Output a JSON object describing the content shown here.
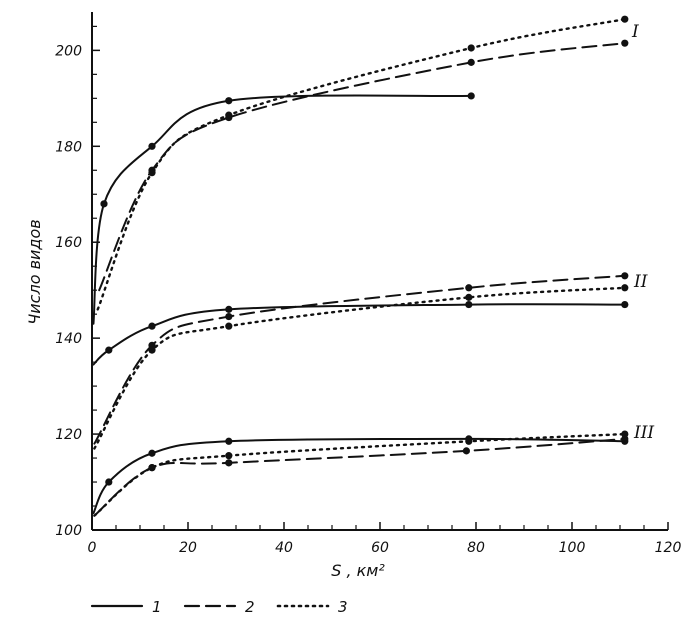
{
  "chart_data": {
    "type": "line",
    "xlabel": "S , км²",
    "ylabel": "Число видов",
    "xlim": [
      0,
      120
    ],
    "ylim": [
      100,
      208
    ],
    "x_ticks": [
      0,
      20,
      40,
      60,
      80,
      100,
      120
    ],
    "x_tick_labels": [
      "0",
      "20",
      "40",
      "60",
      "80",
      "100",
      "120"
    ],
    "y_ticks": [
      100,
      120,
      140,
      160,
      180,
      200
    ],
    "y_tick_labels": [
      "100",
      "120",
      "140",
      "160",
      "180",
      "200"
    ],
    "grid": false,
    "legend_placement": "bottom-left",
    "legend": [
      {
        "label": "1",
        "style": "solid"
      },
      {
        "label": "2",
        "style": "dashed"
      },
      {
        "label": "3",
        "style": "dotted"
      }
    ],
    "groups": [
      {
        "label": "I",
        "series": [
          {
            "legend": "1",
            "style": "solid",
            "x": [
              0.3,
              2.5,
              12.5,
              28.5,
              79
            ],
            "y": [
              143,
              168,
              180,
              189.5,
              190.5
            ]
          },
          {
            "legend": "2",
            "style": "dashed",
            "x": [
              1.5,
              12.5,
              28.5,
              79,
              111
            ],
            "y": [
              150,
              175,
              186,
              197.5,
              201.5
            ]
          },
          {
            "legend": "3",
            "style": "dotted",
            "x": [
              1.2,
              12.5,
              28.5,
              79,
              111
            ],
            "y": [
              146,
              174.5,
              186.5,
              200.5,
              206.5
            ]
          }
        ]
      },
      {
        "label": "II",
        "series": [
          {
            "legend": "1",
            "style": "solid",
            "x": [
              0.3,
              3.5,
              12.5,
              28.5,
              78.5,
              111
            ],
            "y": [
              134.5,
              137.5,
              142.5,
              146,
              147,
              147
            ]
          },
          {
            "legend": "2",
            "style": "dashed",
            "x": [
              0.5,
              12.5,
              28.5,
              78.5,
              111
            ],
            "y": [
              118,
              138.5,
              144.5,
              150.5,
              153
            ]
          },
          {
            "legend": "3",
            "style": "dotted",
            "x": [
              0.5,
              12.5,
              28.5,
              78.5,
              111
            ],
            "y": [
              117,
              137.5,
              142.5,
              148.5,
              150.5
            ]
          }
        ]
      },
      {
        "label": "III",
        "series": [
          {
            "legend": "1",
            "style": "solid",
            "x": [
              0.3,
              3.5,
              12.5,
              28.5,
              78.5,
              111
            ],
            "y": [
              103.5,
              110,
              116,
              118.5,
              119,
              118.5
            ]
          },
          {
            "legend": "2",
            "style": "dashed",
            "x": [
              0.5,
              12.5,
              28.5,
              78,
              111
            ],
            "y": [
              103,
              113,
              114,
              116.5,
              119
            ]
          },
          {
            "legend": "3",
            "style": "dotted",
            "x": [
              0.5,
              12.5,
              28.5,
              78.5,
              111
            ],
            "y": [
              103,
              113,
              115.5,
              118.5,
              120
            ]
          }
        ]
      }
    ]
  }
}
